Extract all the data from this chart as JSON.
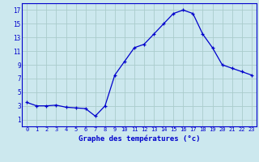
{
  "x": [
    0,
    1,
    2,
    3,
    4,
    5,
    6,
    7,
    8,
    9,
    10,
    11,
    12,
    13,
    14,
    15,
    16,
    17,
    18,
    19,
    20,
    21,
    22,
    23
  ],
  "y": [
    3.5,
    3.0,
    3.0,
    3.1,
    2.8,
    2.7,
    2.6,
    1.5,
    3.0,
    7.5,
    9.5,
    11.5,
    12.0,
    13.5,
    15.0,
    16.5,
    17.0,
    16.5,
    13.5,
    11.5,
    9.0,
    8.5,
    8.0,
    7.5
  ],
  "line_color": "#0000cc",
  "marker": "+",
  "bg_color": "#cce8ee",
  "grid_color": "#aacccc",
  "xlabel": "Graphe des températures (°c)",
  "xlabel_color": "#0000cc",
  "tick_color": "#0000cc",
  "xlim": [
    -0.5,
    23.5
  ],
  "ylim": [
    0,
    18
  ],
  "yticks": [
    1,
    3,
    5,
    7,
    9,
    11,
    13,
    15,
    17
  ],
  "xticks": [
    0,
    1,
    2,
    3,
    4,
    5,
    6,
    7,
    8,
    9,
    10,
    11,
    12,
    13,
    14,
    15,
    16,
    17,
    18,
    19,
    20,
    21,
    22,
    23
  ],
  "spine_color": "#0000cc",
  "axis_bg_color": "#cce8ee"
}
